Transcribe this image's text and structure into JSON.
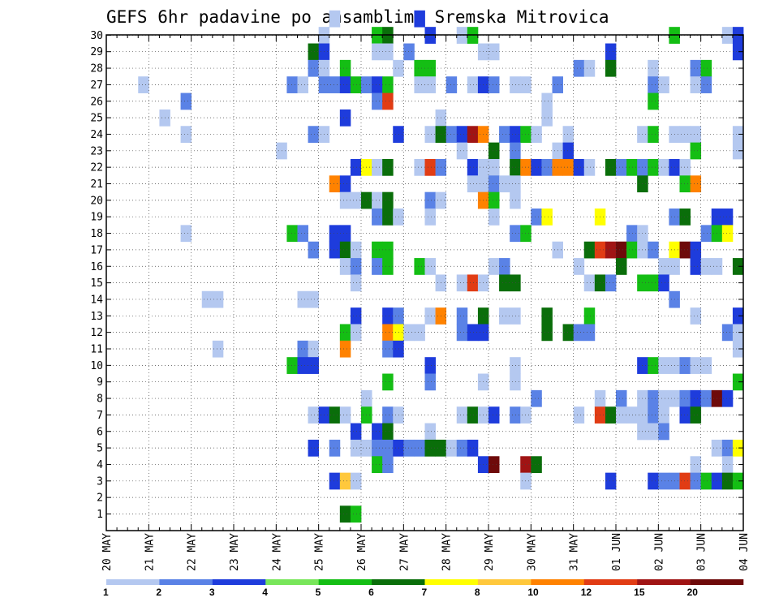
{
  "chart_data": {
    "type": "heatmap",
    "title": "GEFS 6hr padavine po ansamblima Sremska Mitrovica",
    "xlabel": "",
    "ylabel": "",
    "x_tick_labels": [
      "20 MAY",
      "21 MAY",
      "22 MAY",
      "23 MAY",
      "24 MAY",
      "25 MAY",
      "26 MAY",
      "27 MAY",
      "28 MAY",
      "29 MAY",
      "30 MAY",
      "31 MAY",
      "01 JUN",
      "02 JUN",
      "03 JUN",
      "04 JUN"
    ],
    "x_steps_per_day": 4,
    "x_step_count": 60,
    "y_tick_labels": [
      "1",
      "2",
      "3",
      "4",
      "5",
      "6",
      "7",
      "8",
      "9",
      "10",
      "11",
      "12",
      "13",
      "14",
      "15",
      "16",
      "17",
      "18",
      "19",
      "20",
      "21",
      "22",
      "23",
      "24",
      "25",
      "26",
      "27",
      "28",
      "29",
      "30"
    ],
    "ylim": [
      1,
      30
    ],
    "grid": true,
    "colorbar": {
      "labels": [
        "1",
        "2",
        "3",
        "4",
        "5",
        "6",
        "7",
        "8",
        "10",
        "12",
        "15",
        "20"
      ],
      "colors": [
        "#b4c8f0",
        "#5a82e6",
        "#1e3cdc",
        "#78e65a",
        "#14be14",
        "#0a6e0a",
        "#ffff00",
        "#ffc83c",
        "#ff8200",
        "#e13c14",
        "#a01414",
        "#6e0a0a"
      ]
    },
    "cells": [
      [
        21,
        30,
        0
      ],
      [
        29,
        30,
        2
      ],
      [
        20,
        29,
        0
      ],
      [
        25,
        29,
        4
      ],
      [
        26,
        29,
        5
      ],
      [
        30,
        29,
        2
      ],
      [
        33,
        29,
        0
      ],
      [
        34,
        29,
        4
      ],
      [
        53,
        29,
        4
      ],
      [
        58,
        29,
        0
      ],
      [
        59,
        29,
        2
      ],
      [
        19,
        28,
        5
      ],
      [
        20,
        28,
        2
      ],
      [
        25,
        28,
        0
      ],
      [
        26,
        28,
        0
      ],
      [
        28,
        28,
        1
      ],
      [
        35,
        28,
        0
      ],
      [
        36,
        28,
        0
      ],
      [
        47,
        28,
        2
      ],
      [
        59,
        28,
        2
      ],
      [
        19,
        27,
        1
      ],
      [
        20,
        27,
        0
      ],
      [
        22,
        27,
        4
      ],
      [
        27,
        27,
        0
      ],
      [
        29,
        27,
        4
      ],
      [
        30,
        27,
        4
      ],
      [
        44,
        27,
        1
      ],
      [
        45,
        27,
        0
      ],
      [
        47,
        27,
        5
      ],
      [
        51,
        27,
        0
      ],
      [
        55,
        27,
        1
      ],
      [
        56,
        27,
        4
      ],
      [
        3,
        26,
        0
      ],
      [
        17,
        26,
        1
      ],
      [
        18,
        26,
        0
      ],
      [
        20,
        26,
        1
      ],
      [
        21,
        26,
        1
      ],
      [
        22,
        26,
        2
      ],
      [
        23,
        26,
        4
      ],
      [
        24,
        26,
        1
      ],
      [
        25,
        26,
        2
      ],
      [
        26,
        26,
        4
      ],
      [
        29,
        26,
        0
      ],
      [
        30,
        26,
        0
      ],
      [
        32,
        26,
        1
      ],
      [
        34,
        26,
        0
      ],
      [
        35,
        26,
        2
      ],
      [
        36,
        26,
        1
      ],
      [
        38,
        26,
        0
      ],
      [
        39,
        26,
        0
      ],
      [
        42,
        26,
        1
      ],
      [
        51,
        26,
        1
      ],
      [
        52,
        26,
        0
      ],
      [
        55,
        26,
        0
      ],
      [
        56,
        26,
        1
      ],
      [
        7,
        25,
        1
      ],
      [
        25,
        25,
        1
      ],
      [
        26,
        25,
        9
      ],
      [
        41,
        25,
        0
      ],
      [
        51,
        25,
        4
      ],
      [
        5,
        24,
        0
      ],
      [
        22,
        24,
        2
      ],
      [
        31,
        24,
        0
      ],
      [
        41,
        24,
        0
      ],
      [
        7,
        23,
        0
      ],
      [
        19,
        23,
        1
      ],
      [
        20,
        23,
        0
      ],
      [
        27,
        23,
        2
      ],
      [
        30,
        23,
        0
      ],
      [
        31,
        23,
        5
      ],
      [
        32,
        23,
        1
      ],
      [
        33,
        23,
        2
      ],
      [
        34,
        23,
        10
      ],
      [
        35,
        23,
        8
      ],
      [
        37,
        23,
        1
      ],
      [
        38,
        23,
        2
      ],
      [
        39,
        23,
        4
      ],
      [
        40,
        23,
        0
      ],
      [
        43,
        23,
        0
      ],
      [
        50,
        23,
        0
      ],
      [
        51,
        23,
        4
      ],
      [
        53,
        23,
        0
      ],
      [
        54,
        23,
        0
      ],
      [
        55,
        23,
        0
      ],
      [
        59,
        23,
        0
      ],
      [
        16,
        22,
        0
      ],
      [
        33,
        22,
        0
      ],
      [
        36,
        22,
        5
      ],
      [
        38,
        22,
        1
      ],
      [
        42,
        22,
        0
      ],
      [
        43,
        22,
        2
      ],
      [
        55,
        22,
        4
      ],
      [
        59,
        22,
        0
      ],
      [
        23,
        21,
        2
      ],
      [
        24,
        21,
        6
      ],
      [
        25,
        21,
        0
      ],
      [
        26,
        21,
        5
      ],
      [
        29,
        21,
        0
      ],
      [
        30,
        21,
        9
      ],
      [
        31,
        21,
        1
      ],
      [
        34,
        21,
        2
      ],
      [
        35,
        21,
        0
      ],
      [
        36,
        21,
        0
      ],
      [
        38,
        21,
        5
      ],
      [
        39,
        21,
        8
      ],
      [
        40,
        21,
        2
      ],
      [
        41,
        21,
        1
      ],
      [
        42,
        21,
        8
      ],
      [
        43,
        21,
        8
      ],
      [
        44,
        21,
        2
      ],
      [
        45,
        21,
        0
      ],
      [
        47,
        21,
        5
      ],
      [
        48,
        21,
        1
      ],
      [
        49,
        21,
        4
      ],
      [
        50,
        21,
        1
      ],
      [
        51,
        21,
        4
      ],
      [
        52,
        21,
        0
      ],
      [
        53,
        21,
        2
      ],
      [
        54,
        21,
        0
      ],
      [
        21,
        20,
        8
      ],
      [
        22,
        20,
        2
      ],
      [
        34,
        20,
        0
      ],
      [
        35,
        20,
        0
      ],
      [
        36,
        20,
        1
      ],
      [
        37,
        20,
        0
      ],
      [
        38,
        20,
        0
      ],
      [
        50,
        20,
        5
      ],
      [
        54,
        20,
        4
      ],
      [
        55,
        20,
        8
      ],
      [
        22,
        19,
        0
      ],
      [
        23,
        19,
        0
      ],
      [
        24,
        19,
        5
      ],
      [
        25,
        19,
        0
      ],
      [
        26,
        19,
        5
      ],
      [
        30,
        19,
        1
      ],
      [
        31,
        19,
        0
      ],
      [
        35,
        19,
        8
      ],
      [
        36,
        19,
        4
      ],
      [
        38,
        19,
        0
      ],
      [
        25,
        18,
        1
      ],
      [
        26,
        18,
        5
      ],
      [
        27,
        18,
        0
      ],
      [
        30,
        18,
        0
      ],
      [
        36,
        18,
        0
      ],
      [
        40,
        18,
        1
      ],
      [
        41,
        18,
        6
      ],
      [
        46,
        18,
        6
      ],
      [
        53,
        18,
        1
      ],
      [
        54,
        18,
        5
      ],
      [
        57,
        18,
        2
      ],
      [
        58,
        18,
        2
      ],
      [
        7,
        17,
        0
      ],
      [
        17,
        17,
        4
      ],
      [
        18,
        17,
        1
      ],
      [
        21,
        17,
        2
      ],
      [
        22,
        17,
        2
      ],
      [
        38,
        17,
        1
      ],
      [
        39,
        17,
        4
      ],
      [
        49,
        17,
        1
      ],
      [
        50,
        17,
        0
      ],
      [
        56,
        17,
        1
      ],
      [
        57,
        17,
        4
      ],
      [
        58,
        17,
        6
      ],
      [
        19,
        16,
        1
      ],
      [
        21,
        16,
        2
      ],
      [
        22,
        16,
        5
      ],
      [
        23,
        16,
        0
      ],
      [
        25,
        16,
        4
      ],
      [
        26,
        16,
        4
      ],
      [
        42,
        16,
        0
      ],
      [
        45,
        16,
        5
      ],
      [
        46,
        16,
        9
      ],
      [
        47,
        16,
        10
      ],
      [
        48,
        16,
        11
      ],
      [
        49,
        16,
        4
      ],
      [
        50,
        16,
        0
      ],
      [
        51,
        16,
        1
      ],
      [
        53,
        16,
        6
      ],
      [
        54,
        16,
        11
      ],
      [
        55,
        16,
        2
      ],
      [
        22,
        15,
        0
      ],
      [
        23,
        15,
        1
      ],
      [
        25,
        15,
        1
      ],
      [
        26,
        15,
        4
      ],
      [
        29,
        15,
        4
      ],
      [
        30,
        15,
        0
      ],
      [
        36,
        15,
        0
      ],
      [
        37,
        15,
        1
      ],
      [
        44,
        15,
        0
      ],
      [
        48,
        15,
        5
      ],
      [
        52,
        15,
        0
      ],
      [
        53,
        15,
        0
      ],
      [
        55,
        15,
        2
      ],
      [
        56,
        15,
        0
      ],
      [
        57,
        15,
        0
      ],
      [
        59,
        15,
        5
      ],
      [
        23,
        14,
        0
      ],
      [
        31,
        14,
        0
      ],
      [
        33,
        14,
        0
      ],
      [
        34,
        14,
        9
      ],
      [
        35,
        14,
        0
      ],
      [
        37,
        14,
        5
      ],
      [
        38,
        14,
        5
      ],
      [
        45,
        14,
        0
      ],
      [
        46,
        14,
        5
      ],
      [
        47,
        14,
        1
      ],
      [
        50,
        14,
        4
      ],
      [
        51,
        14,
        4
      ],
      [
        52,
        14,
        2
      ],
      [
        9,
        13,
        0
      ],
      [
        10,
        13,
        0
      ],
      [
        18,
        13,
        0
      ],
      [
        19,
        13,
        0
      ],
      [
        53,
        13,
        1
      ],
      [
        23,
        12,
        2
      ],
      [
        26,
        12,
        2
      ],
      [
        27,
        12,
        1
      ],
      [
        30,
        12,
        0
      ],
      [
        31,
        12,
        8
      ],
      [
        33,
        12,
        1
      ],
      [
        35,
        12,
        5
      ],
      [
        37,
        12,
        0
      ],
      [
        38,
        12,
        0
      ],
      [
        41,
        12,
        5
      ],
      [
        45,
        12,
        4
      ],
      [
        55,
        12,
        0
      ],
      [
        59,
        12,
        2
      ],
      [
        22,
        11,
        4
      ],
      [
        23,
        11,
        0
      ],
      [
        26,
        11,
        8
      ],
      [
        27,
        11,
        6
      ],
      [
        28,
        11,
        0
      ],
      [
        29,
        11,
        0
      ],
      [
        33,
        11,
        1
      ],
      [
        34,
        11,
        2
      ],
      [
        35,
        11,
        2
      ],
      [
        41,
        11,
        5
      ],
      [
        43,
        11,
        5
      ],
      [
        44,
        11,
        1
      ],
      [
        45,
        11,
        1
      ],
      [
        58,
        11,
        1
      ],
      [
        59,
        11,
        0
      ],
      [
        10,
        10,
        0
      ],
      [
        18,
        10,
        1
      ],
      [
        19,
        10,
        0
      ],
      [
        22,
        10,
        8
      ],
      [
        26,
        10,
        1
      ],
      [
        27,
        10,
        2
      ],
      [
        59,
        10,
        0
      ],
      [
        17,
        9,
        4
      ],
      [
        18,
        9,
        2
      ],
      [
        19,
        9,
        2
      ],
      [
        30,
        9,
        2
      ],
      [
        38,
        9,
        0
      ],
      [
        50,
        9,
        2
      ],
      [
        51,
        9,
        4
      ],
      [
        52,
        9,
        0
      ],
      [
        53,
        9,
        0
      ],
      [
        54,
        9,
        1
      ],
      [
        55,
        9,
        0
      ],
      [
        56,
        9,
        0
      ],
      [
        26,
        8,
        4
      ],
      [
        30,
        8,
        1
      ],
      [
        35,
        8,
        0
      ],
      [
        38,
        8,
        0
      ],
      [
        59,
        8,
        4
      ],
      [
        24,
        7,
        0
      ],
      [
        40,
        7,
        1
      ],
      [
        46,
        7,
        0
      ],
      [
        48,
        7,
        1
      ],
      [
        50,
        7,
        0
      ],
      [
        51,
        7,
        1
      ],
      [
        52,
        7,
        0
      ],
      [
        53,
        7,
        0
      ],
      [
        54,
        7,
        1
      ],
      [
        55,
        7,
        2
      ],
      [
        56,
        7,
        1
      ],
      [
        57,
        7,
        11
      ],
      [
        58,
        7,
        2
      ],
      [
        19,
        6,
        0
      ],
      [
        20,
        6,
        2
      ],
      [
        21,
        6,
        5
      ],
      [
        22,
        6,
        0
      ],
      [
        24,
        6,
        4
      ],
      [
        26,
        6,
        1
      ],
      [
        27,
        6,
        0
      ],
      [
        33,
        6,
        0
      ],
      [
        34,
        6,
        5
      ],
      [
        35,
        6,
        0
      ],
      [
        36,
        6,
        2
      ],
      [
        38,
        6,
        1
      ],
      [
        39,
        6,
        0
      ],
      [
        44,
        6,
        0
      ],
      [
        46,
        6,
        9
      ],
      [
        47,
        6,
        5
      ],
      [
        48,
        6,
        0
      ],
      [
        49,
        6,
        0
      ],
      [
        50,
        6,
        0
      ],
      [
        51,
        6,
        1
      ],
      [
        52,
        6,
        0
      ],
      [
        54,
        6,
        2
      ],
      [
        55,
        6,
        5
      ],
      [
        23,
        5,
        2
      ],
      [
        25,
        5,
        2
      ],
      [
        26,
        5,
        5
      ],
      [
        30,
        5,
        0
      ],
      [
        50,
        5,
        0
      ],
      [
        51,
        5,
        0
      ],
      [
        52,
        5,
        1
      ],
      [
        19,
        4,
        2
      ],
      [
        21,
        4,
        1
      ],
      [
        23,
        4,
        0
      ],
      [
        24,
        4,
        0
      ],
      [
        25,
        4,
        1
      ],
      [
        26,
        4,
        1
      ],
      [
        27,
        4,
        2
      ],
      [
        28,
        4,
        1
      ],
      [
        29,
        4,
        1
      ],
      [
        30,
        4,
        5
      ],
      [
        31,
        4,
        5
      ],
      [
        32,
        4,
        0
      ],
      [
        33,
        4,
        1
      ],
      [
        34,
        4,
        2
      ],
      [
        57,
        4,
        0
      ],
      [
        58,
        4,
        1
      ],
      [
        59,
        4,
        6
      ],
      [
        25,
        3,
        4
      ],
      [
        26,
        3,
        1
      ],
      [
        35,
        3,
        2
      ],
      [
        36,
        3,
        11
      ],
      [
        39,
        3,
        10
      ],
      [
        40,
        3,
        5
      ],
      [
        55,
        3,
        0
      ],
      [
        58,
        3,
        0
      ],
      [
        21,
        2,
        2
      ],
      [
        22,
        2,
        7
      ],
      [
        23,
        2,
        0
      ],
      [
        39,
        2,
        0
      ],
      [
        47,
        2,
        2
      ],
      [
        51,
        2,
        2
      ],
      [
        52,
        2,
        1
      ],
      [
        53,
        2,
        1
      ],
      [
        54,
        2,
        9
      ],
      [
        55,
        2,
        1
      ],
      [
        56,
        2,
        4
      ],
      [
        57,
        2,
        2
      ],
      [
        58,
        2,
        5
      ],
      [
        59,
        2,
        4
      ],
      [
        22,
        0,
        5
      ],
      [
        23,
        0,
        4
      ]
    ]
  }
}
